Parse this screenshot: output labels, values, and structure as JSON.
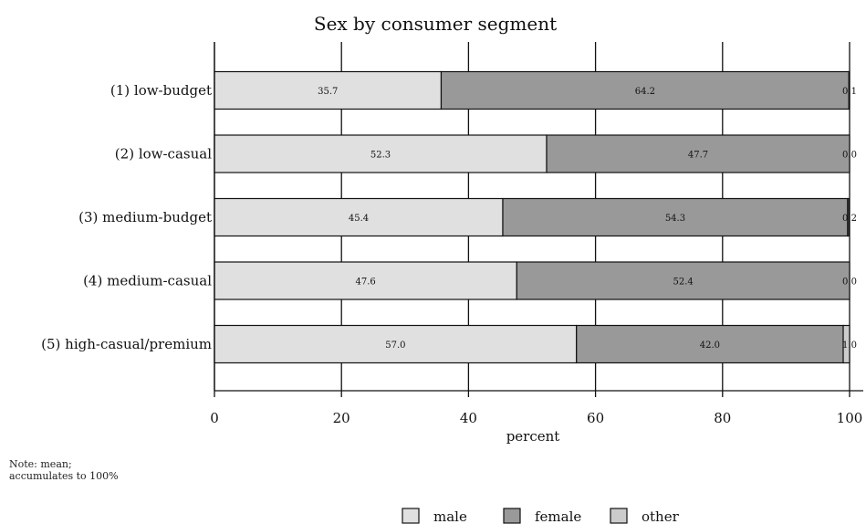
{
  "chart_data": {
    "type": "bar",
    "orientation": "horizontal",
    "stacked": true,
    "title": "Sex by consumer segment",
    "xlabel": "percent",
    "xlim": [
      0,
      100
    ],
    "xticks": [
      "0",
      "20",
      "40",
      "60",
      "80",
      "100"
    ],
    "grid": true,
    "categories": [
      "(1) low-budget",
      "(2) low-casual",
      "(3) medium-budget",
      "(4) medium-casual",
      "(5) high-casual/premium"
    ],
    "series": [
      {
        "name": "male",
        "color": "#e0e0e0",
        "values": [
          35.7,
          52.3,
          45.4,
          47.6,
          57.0
        ],
        "labels": [
          "35.7",
          "52.3",
          "45.4",
          "47.6",
          "57.0"
        ]
      },
      {
        "name": "female",
        "color": "#999999",
        "values": [
          64.2,
          47.7,
          54.3,
          52.4,
          42.0
        ],
        "labels": [
          "64.2",
          "47.7",
          "54.3",
          "52.4",
          "42.0"
        ]
      },
      {
        "name": "other",
        "color": "#cccccc",
        "values": [
          0.1,
          0.0,
          0.2,
          0.0,
          1.0
        ],
        "labels": [
          "0.1",
          "0.0",
          "0.2",
          "0.0",
          "1.0"
        ]
      }
    ],
    "note": [
      "Note: mean;",
      "accumulates to 100%"
    ],
    "legend_position": "bottom"
  }
}
